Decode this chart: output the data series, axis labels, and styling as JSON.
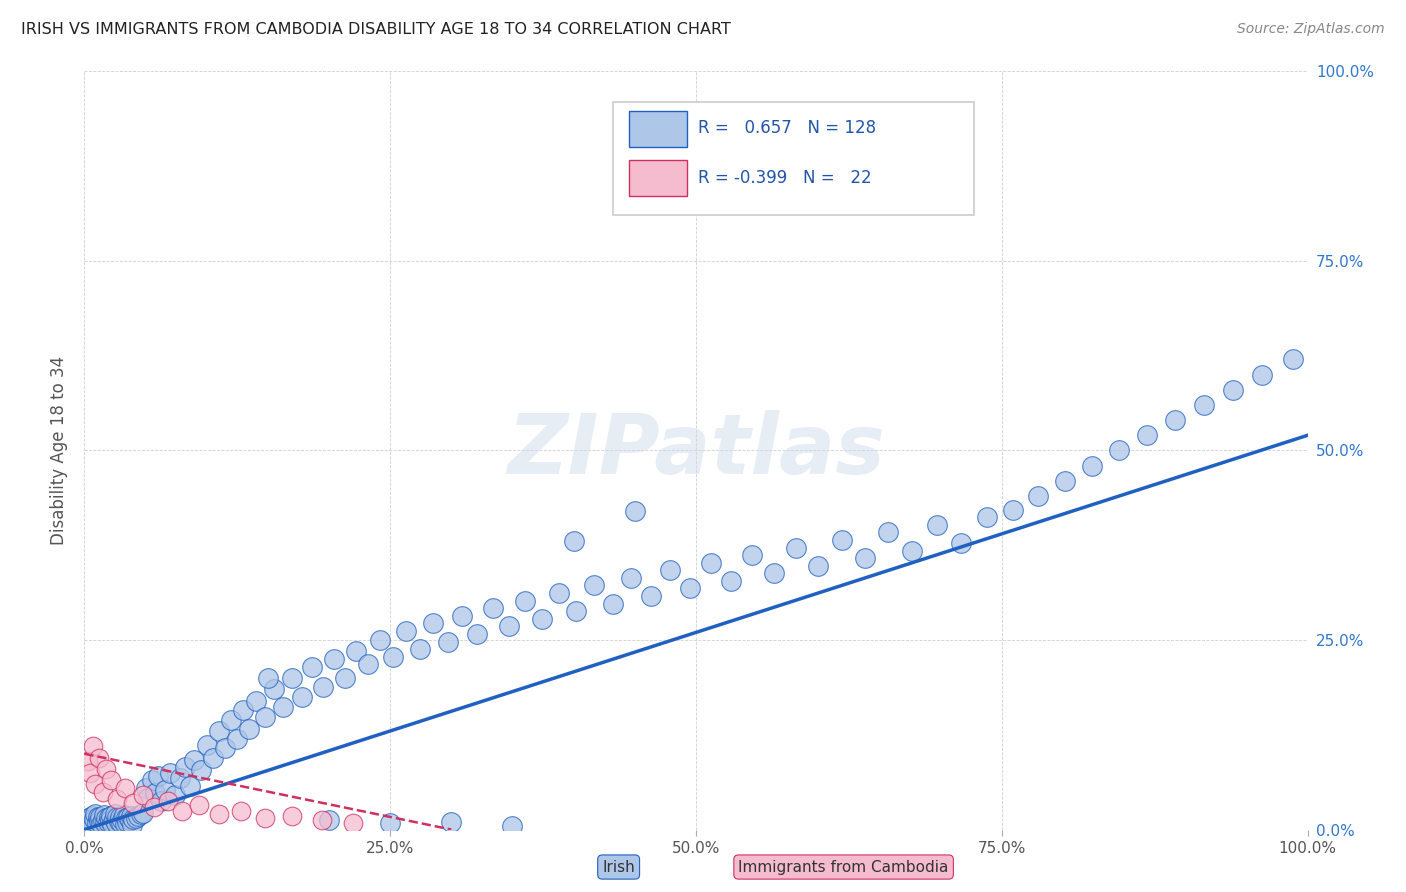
{
  "title": "IRISH VS IMMIGRANTS FROM CAMBODIA DISABILITY AGE 18 TO 34 CORRELATION CHART",
  "source": "Source: ZipAtlas.com",
  "ylabel": "Disability Age 18 to 34",
  "watermark": "ZIPatlas",
  "legend_irish_r": "0.657",
  "legend_irish_n": "128",
  "legend_camb_r": "-0.399",
  "legend_camb_n": "22",
  "irish_color": "#aec6e8",
  "irish_line_color": "#2060c0",
  "camb_color": "#f5bcd0",
  "camb_line_color": "#d03060",
  "background_color": "#ffffff",
  "grid_color": "#bbbbbb",
  "title_color": "#222222",
  "right_axis_color": "#3377cc",
  "irish_x": [
    0.002,
    0.003,
    0.004,
    0.005,
    0.006,
    0.007,
    0.008,
    0.009,
    0.01,
    0.011,
    0.012,
    0.013,
    0.014,
    0.015,
    0.016,
    0.017,
    0.018,
    0.019,
    0.02,
    0.021,
    0.022,
    0.023,
    0.024,
    0.025,
    0.026,
    0.027,
    0.028,
    0.029,
    0.03,
    0.031,
    0.032,
    0.033,
    0.034,
    0.035,
    0.036,
    0.037,
    0.038,
    0.039,
    0.04,
    0.042,
    0.044,
    0.046,
    0.048,
    0.05,
    0.052,
    0.055,
    0.058,
    0.06,
    0.063,
    0.066,
    0.07,
    0.074,
    0.078,
    0.082,
    0.086,
    0.09,
    0.095,
    0.1,
    0.105,
    0.11,
    0.115,
    0.12,
    0.125,
    0.13,
    0.135,
    0.14,
    0.148,
    0.155,
    0.162,
    0.17,
    0.178,
    0.186,
    0.195,
    0.204,
    0.213,
    0.222,
    0.232,
    0.242,
    0.252,
    0.263,
    0.274,
    0.285,
    0.297,
    0.309,
    0.321,
    0.334,
    0.347,
    0.36,
    0.374,
    0.388,
    0.402,
    0.417,
    0.432,
    0.447,
    0.463,
    0.479,
    0.495,
    0.512,
    0.529,
    0.546,
    0.564,
    0.582,
    0.6,
    0.619,
    0.638,
    0.657,
    0.677,
    0.697,
    0.717,
    0.738,
    0.759,
    0.78,
    0.802,
    0.824,
    0.846,
    0.869,
    0.892,
    0.915,
    0.939,
    0.963,
    0.988,
    0.4,
    0.45,
    0.3,
    0.35,
    0.25,
    0.2,
    0.15
  ],
  "irish_y": [
    0.01,
    0.015,
    0.008,
    0.012,
    0.018,
    0.006,
    0.014,
    0.02,
    0.009,
    0.016,
    0.011,
    0.017,
    0.007,
    0.013,
    0.019,
    0.008,
    0.015,
    0.01,
    0.016,
    0.012,
    0.018,
    0.007,
    0.014,
    0.02,
    0.009,
    0.016,
    0.011,
    0.017,
    0.008,
    0.013,
    0.019,
    0.007,
    0.015,
    0.01,
    0.016,
    0.012,
    0.018,
    0.006,
    0.014,
    0.015,
    0.018,
    0.02,
    0.022,
    0.055,
    0.042,
    0.065,
    0.048,
    0.07,
    0.038,
    0.052,
    0.075,
    0.045,
    0.068,
    0.082,
    0.058,
    0.092,
    0.078,
    0.112,
    0.095,
    0.13,
    0.108,
    0.145,
    0.12,
    0.158,
    0.132,
    0.17,
    0.148,
    0.185,
    0.162,
    0.2,
    0.175,
    0.215,
    0.188,
    0.225,
    0.2,
    0.235,
    0.218,
    0.25,
    0.228,
    0.262,
    0.238,
    0.272,
    0.248,
    0.282,
    0.258,
    0.292,
    0.268,
    0.302,
    0.278,
    0.312,
    0.288,
    0.322,
    0.298,
    0.332,
    0.308,
    0.342,
    0.318,
    0.352,
    0.328,
    0.362,
    0.338,
    0.372,
    0.348,
    0.382,
    0.358,
    0.392,
    0.368,
    0.402,
    0.378,
    0.412,
    0.422,
    0.44,
    0.46,
    0.48,
    0.5,
    0.52,
    0.54,
    0.56,
    0.58,
    0.6,
    0.62,
    0.38,
    0.42,
    0.01,
    0.005,
    0.008,
    0.012,
    0.2
  ],
  "camb_x": [
    0.003,
    0.005,
    0.007,
    0.009,
    0.012,
    0.015,
    0.018,
    0.022,
    0.027,
    0.033,
    0.04,
    0.048,
    0.057,
    0.068,
    0.08,
    0.094,
    0.11,
    0.128,
    0.148,
    0.17,
    0.194,
    0.22
  ],
  "camb_y": [
    0.09,
    0.075,
    0.11,
    0.06,
    0.095,
    0.05,
    0.08,
    0.065,
    0.04,
    0.055,
    0.035,
    0.045,
    0.03,
    0.038,
    0.025,
    0.032,
    0.02,
    0.025,
    0.015,
    0.018,
    0.012,
    0.008
  ],
  "xlim": [
    0.0,
    1.0
  ],
  "ylim": [
    0.0,
    1.0
  ],
  "xticks": [
    0.0,
    0.25,
    0.5,
    0.75,
    1.0
  ],
  "xtick_labels": [
    "0.0%",
    "25.0%",
    "50.0%",
    "75.0%",
    "100.0%"
  ],
  "yticks": [
    0.0,
    0.25,
    0.5,
    0.75,
    1.0
  ],
  "ytick_labels": [
    "0.0%",
    "25.0%",
    "50.0%",
    "75.0%",
    "100.0%"
  ],
  "irish_line_x": [
    0.0,
    1.0
  ],
  "irish_line_y": [
    0.0,
    0.52
  ],
  "camb_line_x": [
    0.0,
    0.3
  ],
  "camb_line_y": [
    0.1,
    0.0
  ]
}
